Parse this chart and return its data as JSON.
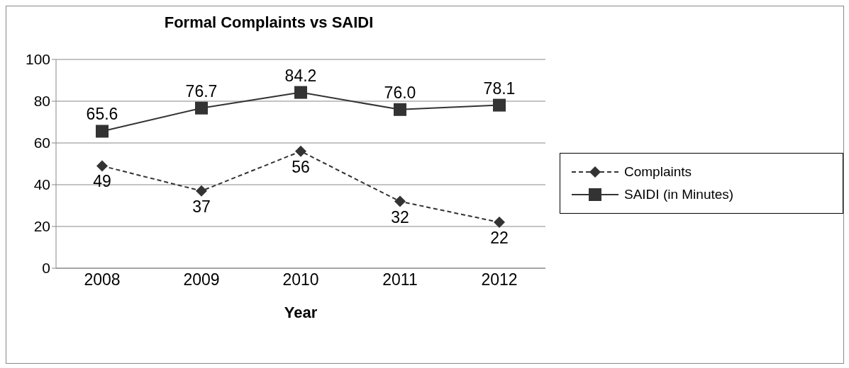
{
  "chart_data": {
    "type": "line",
    "title": "Formal Complaints vs SAIDI",
    "xlabel": "Year",
    "categories": [
      "2008",
      "2009",
      "2010",
      "2011",
      "2012"
    ],
    "series": [
      {
        "name": "Complaints",
        "color": "#333333",
        "values": [
          49,
          37,
          56,
          32,
          22
        ],
        "value_labels": [
          "49",
          "37",
          "56",
          "32",
          "22"
        ],
        "marker": "diamond",
        "line_style": "dashed"
      },
      {
        "name": "SAIDI (in Minutes)",
        "color": "#333333",
        "values": [
          65.6,
          76.7,
          84.2,
          76.0,
          78.1
        ],
        "value_labels": [
          "65.6",
          "76.7",
          "84.2",
          "76.0",
          "78.1"
        ],
        "marker": "square",
        "line_style": "solid"
      }
    ],
    "ylim": [
      0,
      100
    ],
    "yticks": [
      0,
      20,
      40,
      60,
      80,
      100
    ],
    "grid": "y",
    "legend": "right"
  }
}
